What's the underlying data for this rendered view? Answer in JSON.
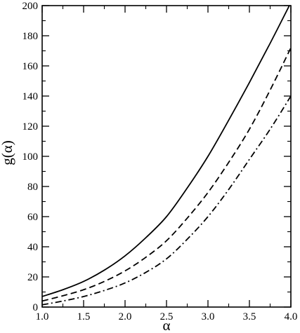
{
  "chart_data": {
    "type": "line",
    "title": "",
    "xlabel": "α",
    "ylabel": "g(α)",
    "xlim": [
      1.0,
      4.0
    ],
    "ylim": [
      0,
      200
    ],
    "x_ticks": [
      1.0,
      1.5,
      2.0,
      2.5,
      3.0,
      3.5,
      4.0
    ],
    "x_tick_labels": [
      "1.0",
      "1.5",
      "2.0",
      "2.5",
      "3.0",
      "3.5",
      "4.0"
    ],
    "y_ticks": [
      0,
      20,
      40,
      60,
      80,
      100,
      120,
      140,
      160,
      180,
      200
    ],
    "y_tick_labels": [
      "0",
      "20",
      "40",
      "60",
      "80",
      "100",
      "120",
      "140",
      "160",
      "180",
      "200"
    ],
    "grid": false,
    "legend": "none",
    "x": [
      1.0,
      1.25,
      1.5,
      1.75,
      2.0,
      2.25,
      2.5,
      2.75,
      3.0,
      3.25,
      3.5,
      3.75,
      4.0
    ],
    "series": [
      {
        "style": "solid",
        "color": "#000000",
        "values": [
          7,
          11.5,
          17,
          24.5,
          34,
          46,
          60,
          79,
          100,
          124,
          149,
          175,
          202
        ]
      },
      {
        "style": "dashed",
        "color": "#000000",
        "values": [
          4,
          7.5,
          11.5,
          17,
          24,
          33,
          44,
          59,
          76,
          96,
          118,
          144,
          172
        ]
      },
      {
        "style": "dashdot",
        "color": "#000000",
        "values": [
          1.5,
          4,
          7,
          11,
          16,
          23,
          32,
          45,
          60,
          78,
          98,
          118,
          140
        ]
      }
    ]
  }
}
